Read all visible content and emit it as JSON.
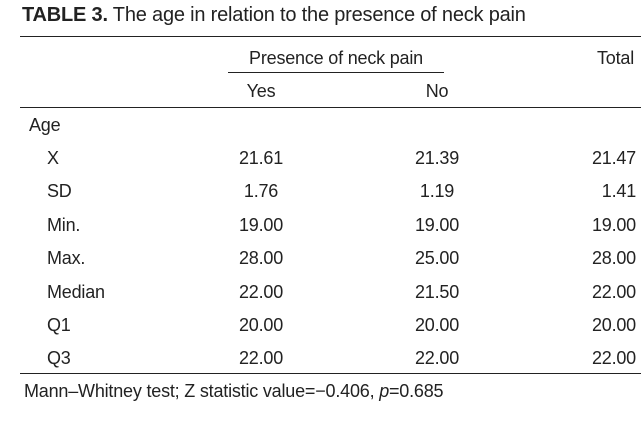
{
  "table": {
    "caption_label": "TABLE 3.",
    "caption_text": " The age in relation to the presence of neck pain",
    "group_header": "Presence of neck pain",
    "total_header": "Total",
    "col_yes": "Yes",
    "col_no": "No",
    "section_label": "Age",
    "rows": [
      {
        "label": "X",
        "yes": "21.61",
        "no": "21.39",
        "total": "21.47"
      },
      {
        "label": "SD",
        "yes": "1.76",
        "no": "1.19",
        "total": "1.41"
      },
      {
        "label": "Min.",
        "yes": "19.00",
        "no": "19.00",
        "total": "19.00"
      },
      {
        "label": "Max.",
        "yes": "28.00",
        "no": "25.00",
        "total": "28.00"
      },
      {
        "label": "Median",
        "yes": "22.00",
        "no": "21.50",
        "total": "22.00"
      },
      {
        "label": "Q1",
        "yes": "20.00",
        "no": "20.00",
        "total": "20.00"
      },
      {
        "label": "Q3",
        "yes": "22.00",
        "no": "22.00",
        "total": "22.00"
      }
    ],
    "footnote_part1": "Mann–Whitney test; Z statistic value=−0.406, ",
    "footnote_p": "p",
    "footnote_part2": "=0.685"
  }
}
